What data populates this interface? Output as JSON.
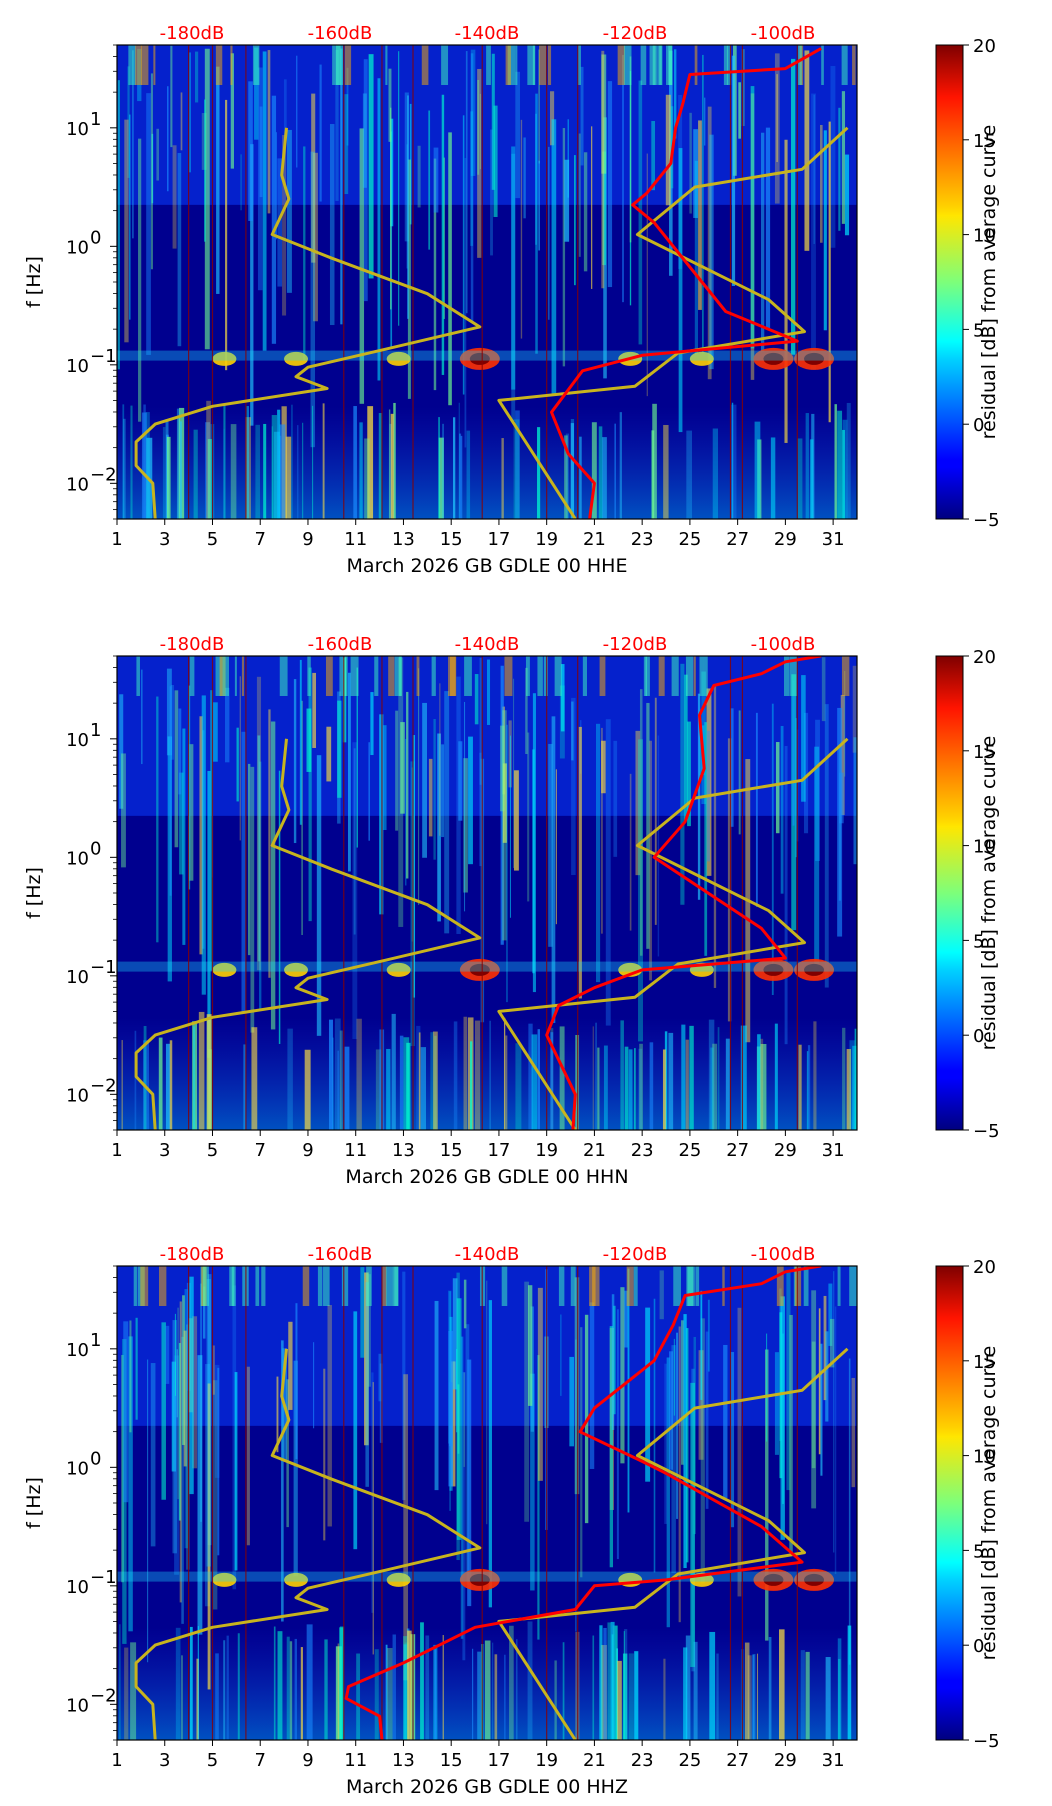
{
  "chart_data": [
    {
      "type": "heatmap",
      "title": "",
      "xlabel": "March 2026 GB GDLE 00 HHE",
      "ylabel": "f [Hz]",
      "colorbar_label": "residual [dB] from average curve",
      "colorbar_ticks": [
        "20",
        "15",
        "10",
        "5",
        "0",
        "−5"
      ],
      "colorbar_range": [
        -5,
        20
      ],
      "x_tick_labels": [
        "1",
        "3",
        "5",
        "7",
        "9",
        "11",
        "13",
        "15",
        "17",
        "19",
        "21",
        "23",
        "25",
        "27",
        "29",
        "31"
      ],
      "x_range": [
        1,
        32
      ],
      "y_tick_labels": [
        {
          "base": "10",
          "exp": "1"
        },
        {
          "base": "10",
          "exp": "0"
        },
        {
          "base": "10",
          "exp": "−1"
        },
        {
          "base": "10",
          "exp": "−2"
        }
      ],
      "y_range_hz": [
        0.005,
        50
      ],
      "top_db_labels": [
        "-180dB",
        "-160dB",
        "-140dB",
        "-120dB",
        "-100dB"
      ],
      "top_db_positions_day": [
        3.1,
        7.1,
        11.0,
        15.0,
        19.0
      ],
      "yellow_curve_day_vs_log10f": [
        [
          8.1,
          1.0
        ],
        [
          7.9,
          0.6
        ],
        [
          8.2,
          0.4
        ],
        [
          7.5,
          0.1
        ],
        [
          10,
          -0.1
        ],
        [
          14,
          -0.4
        ],
        [
          16.2,
          -0.68
        ],
        [
          12,
          -0.88
        ],
        [
          9,
          -1.02
        ],
        [
          8.5,
          -1.1
        ],
        [
          9.8,
          -1.2
        ],
        [
          5,
          -1.35
        ],
        [
          2.6,
          -1.5
        ],
        [
          1.8,
          -1.65
        ],
        [
          1.8,
          -1.85
        ],
        [
          2.5,
          -2.0
        ],
        [
          2.6,
          -2.3
        ]
      ],
      "yellow_curve2_day_vs_log10f": [
        [
          20.2,
          -2.3
        ],
        [
          17,
          -1.3
        ],
        [
          22.7,
          -1.18
        ],
        [
          24.5,
          -0.9
        ],
        [
          29.8,
          -0.72
        ],
        [
          28.3,
          -0.45
        ],
        [
          22.8,
          0.1
        ],
        [
          25.2,
          0.5
        ],
        [
          29.7,
          0.65
        ],
        [
          31.6,
          1.0
        ]
      ],
      "red_curve_day_vs_log10f": [
        [
          20.8,
          -2.3
        ],
        [
          21,
          -2.0
        ],
        [
          19.9,
          -1.75
        ],
        [
          19.2,
          -1.4
        ],
        [
          20.5,
          -1.05
        ],
        [
          23,
          -0.92
        ],
        [
          29.5,
          -0.8
        ],
        [
          26.5,
          -0.55
        ],
        [
          23.5,
          0.2
        ],
        [
          22.6,
          0.35
        ],
        [
          23.2,
          0.45
        ],
        [
          24.2,
          0.7
        ],
        [
          24.4,
          1.0
        ],
        [
          24.7,
          1.2
        ],
        [
          25,
          1.45
        ],
        [
          29,
          1.5
        ],
        [
          30.5,
          1.67
        ]
      ]
    },
    {
      "type": "heatmap",
      "title": "",
      "xlabel": "March 2026 GB GDLE 00 HHN",
      "ylabel": "f [Hz]",
      "colorbar_label": "residual [dB] from average curve",
      "colorbar_ticks": [
        "20",
        "15",
        "10",
        "5",
        "0",
        "−5"
      ],
      "colorbar_range": [
        -5,
        20
      ],
      "x_tick_labels": [
        "1",
        "3",
        "5",
        "7",
        "9",
        "11",
        "13",
        "15",
        "17",
        "19",
        "21",
        "23",
        "25",
        "27",
        "29",
        "31"
      ],
      "x_range": [
        1,
        32
      ],
      "y_tick_labels": [
        {
          "base": "10",
          "exp": "1"
        },
        {
          "base": "10",
          "exp": "0"
        },
        {
          "base": "10",
          "exp": "−1"
        },
        {
          "base": "10",
          "exp": "−2"
        }
      ],
      "y_range_hz": [
        0.005,
        50
      ],
      "top_db_labels": [
        "-180dB",
        "-160dB",
        "-140dB",
        "-120dB",
        "-100dB"
      ],
      "top_db_positions_day": [
        3.1,
        7.1,
        11.0,
        15.0,
        19.0
      ],
      "yellow_curve_day_vs_log10f": [
        [
          8.1,
          1.0
        ],
        [
          7.9,
          0.6
        ],
        [
          8.2,
          0.4
        ],
        [
          7.5,
          0.1
        ],
        [
          10,
          -0.1
        ],
        [
          14,
          -0.4
        ],
        [
          16.2,
          -0.68
        ],
        [
          12,
          -0.88
        ],
        [
          9,
          -1.02
        ],
        [
          8.5,
          -1.1
        ],
        [
          9.8,
          -1.2
        ],
        [
          5,
          -1.35
        ],
        [
          2.6,
          -1.5
        ],
        [
          1.8,
          -1.65
        ],
        [
          1.8,
          -1.85
        ],
        [
          2.5,
          -2.0
        ],
        [
          2.6,
          -2.3
        ]
      ],
      "yellow_curve2_day_vs_log10f": [
        [
          20.2,
          -2.3
        ],
        [
          17,
          -1.3
        ],
        [
          22.7,
          -1.18
        ],
        [
          24.5,
          -0.9
        ],
        [
          29.8,
          -0.72
        ],
        [
          28.3,
          -0.45
        ],
        [
          22.8,
          0.1
        ],
        [
          25.2,
          0.5
        ],
        [
          29.7,
          0.65
        ],
        [
          31.6,
          1.0
        ]
      ],
      "red_curve_day_vs_log10f": [
        [
          20.1,
          -2.3
        ],
        [
          20.2,
          -2.0
        ],
        [
          19.6,
          -1.75
        ],
        [
          19,
          -1.5
        ],
        [
          19.5,
          -1.25
        ],
        [
          21,
          -1.1
        ],
        [
          23,
          -0.95
        ],
        [
          29,
          -0.85
        ],
        [
          28,
          -0.6
        ],
        [
          23.5,
          0.0
        ],
        [
          24.8,
          0.3
        ],
        [
          25.6,
          0.75
        ],
        [
          25.4,
          1.2
        ],
        [
          26,
          1.45
        ],
        [
          28,
          1.55
        ],
        [
          29,
          1.65
        ],
        [
          30.5,
          1.7
        ]
      ]
    },
    {
      "type": "heatmap",
      "title": "",
      "xlabel": "March 2026 GB GDLE 00 HHZ",
      "ylabel": "f [Hz]",
      "colorbar_label": "residual [dB] from average curve",
      "colorbar_ticks": [
        "20",
        "15",
        "10",
        "5",
        "0",
        "−5"
      ],
      "colorbar_range": [
        -5,
        20
      ],
      "x_tick_labels": [
        "1",
        "3",
        "5",
        "7",
        "9",
        "11",
        "13",
        "15",
        "17",
        "19",
        "21",
        "23",
        "25",
        "27",
        "29",
        "31"
      ],
      "x_range": [
        1,
        32
      ],
      "y_tick_labels": [
        {
          "base": "10",
          "exp": "1"
        },
        {
          "base": "10",
          "exp": "0"
        },
        {
          "base": "10",
          "exp": "−1"
        },
        {
          "base": "10",
          "exp": "−2"
        }
      ],
      "y_range_hz": [
        0.005,
        50
      ],
      "top_db_labels": [
        "-180dB",
        "-160dB",
        "-140dB",
        "-120dB",
        "-100dB"
      ],
      "top_db_positions_day": [
        3.1,
        7.1,
        11.0,
        15.0,
        19.0
      ],
      "yellow_curve_day_vs_log10f": [
        [
          8.1,
          1.0
        ],
        [
          7.9,
          0.6
        ],
        [
          8.2,
          0.4
        ],
        [
          7.5,
          0.1
        ],
        [
          10,
          -0.1
        ],
        [
          14,
          -0.4
        ],
        [
          16.2,
          -0.68
        ],
        [
          12,
          -0.88
        ],
        [
          9,
          -1.02
        ],
        [
          8.5,
          -1.1
        ],
        [
          9.8,
          -1.2
        ],
        [
          5,
          -1.35
        ],
        [
          2.6,
          -1.5
        ],
        [
          1.8,
          -1.65
        ],
        [
          1.8,
          -1.85
        ],
        [
          2.5,
          -2.0
        ],
        [
          2.6,
          -2.3
        ]
      ],
      "yellow_curve2_day_vs_log10f": [
        [
          20.2,
          -2.3
        ],
        [
          17,
          -1.3
        ],
        [
          22.7,
          -1.18
        ],
        [
          24.5,
          -0.9
        ],
        [
          29.8,
          -0.72
        ],
        [
          28.3,
          -0.45
        ],
        [
          22.8,
          0.1
        ],
        [
          25.2,
          0.5
        ],
        [
          29.7,
          0.65
        ],
        [
          31.6,
          1.0
        ]
      ],
      "red_curve_day_vs_log10f": [
        [
          12.1,
          -2.3
        ],
        [
          12,
          -2.1
        ],
        [
          10.6,
          -1.95
        ],
        [
          10.7,
          -1.85
        ],
        [
          13,
          -1.65
        ],
        [
          16,
          -1.35
        ],
        [
          20.2,
          -1.2
        ],
        [
          21,
          -1.0
        ],
        [
          24,
          -0.95
        ],
        [
          29.7,
          -0.8
        ],
        [
          28,
          -0.5
        ],
        [
          24,
          -0.05
        ],
        [
          23,
          0.05
        ],
        [
          20.4,
          0.3
        ],
        [
          21,
          0.5
        ],
        [
          23.5,
          0.9
        ],
        [
          24.3,
          1.2
        ],
        [
          24.8,
          1.45
        ],
        [
          28,
          1.55
        ],
        [
          29,
          1.65
        ],
        [
          30.5,
          1.7
        ]
      ]
    }
  ]
}
